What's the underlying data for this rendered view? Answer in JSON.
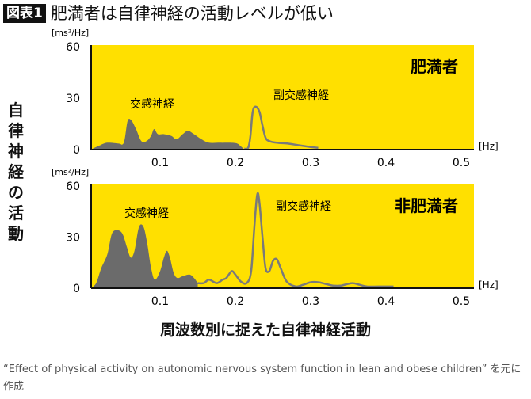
{
  "header": {
    "badge": "図表1",
    "title": "肥満者は自律神経の活動レベルが低い"
  },
  "ylabel_vertical": "自律神経の活動",
  "xlabel": "周波数別に捉えた自律神経活動",
  "source": "“Effect of physical activity on autonomic nervous system function in lean and obese children” を元に作成",
  "colors": {
    "background": "#FFE000",
    "fill": "#6B6B6B",
    "line": "#7A7A7A"
  },
  "chart_data": [
    {
      "type": "area",
      "title": "肥満者",
      "ylabel": "[ms²/Hz]",
      "xlabel": "[Hz]",
      "ylim": [
        0,
        60
      ],
      "xlim": [
        0,
        0.5
      ],
      "yticks": [
        "60",
        "30",
        "0"
      ],
      "xticks": [
        "0.1",
        "0.2",
        "0.3",
        "0.4",
        "0.5"
      ],
      "series": [
        {
          "name": "交感神経",
          "style": "filled",
          "x": [
            0.008,
            0.02,
            0.03,
            0.045,
            0.05,
            0.053,
            0.057,
            0.062,
            0.068,
            0.075,
            0.082,
            0.088,
            0.092,
            0.097,
            0.105,
            0.115,
            0.122,
            0.13,
            0.137,
            0.145,
            0.155,
            0.165,
            0.18,
            0.2,
            0.207,
            0.212
          ],
          "y": [
            0,
            2.5,
            4,
            3.5,
            3,
            6,
            17,
            17,
            12,
            5,
            5,
            8,
            12,
            9,
            9,
            8,
            6,
            9,
            11,
            9,
            6,
            4,
            4,
            3.8,
            2,
            0
          ]
        },
        {
          "name": "副交感神経",
          "style": "line",
          "x": [
            0.212,
            0.217,
            0.22,
            0.223,
            0.227,
            0.232,
            0.236,
            0.24,
            0.245,
            0.255,
            0.27,
            0.285,
            0.3,
            0.31
          ],
          "y": [
            0.5,
            1,
            8,
            22,
            25,
            22,
            14,
            7,
            5,
            4,
            3.5,
            2.5,
            1.5,
            1
          ]
        }
      ]
    },
    {
      "type": "area",
      "title": "非肥満者",
      "ylabel": "[ms²/Hz]",
      "xlabel": "[Hz]",
      "ylim": [
        0,
        60
      ],
      "xlim": [
        0,
        0.5
      ],
      "yticks": [
        "60",
        "30",
        "0"
      ],
      "xticks": [
        "0.1",
        "0.2",
        "0.3",
        "0.4",
        "0.5"
      ],
      "series": [
        {
          "name": "交感神経",
          "style": "filled",
          "x": [
            0.008,
            0.015,
            0.022,
            0.03,
            0.036,
            0.043,
            0.05,
            0.056,
            0.061,
            0.066,
            0.072,
            0.078,
            0.083,
            0.088,
            0.093,
            0.1,
            0.105,
            0.109,
            0.113,
            0.118,
            0.123,
            0.13,
            0.139,
            0.145,
            0.15
          ],
          "y": [
            0,
            3,
            12,
            20,
            32,
            34,
            32,
            24,
            18,
            22,
            36,
            36,
            26,
            12,
            5,
            10,
            18,
            22,
            18,
            9,
            6,
            7,
            8,
            6,
            3
          ]
        },
        {
          "name": "副交感神経",
          "style": "line",
          "x": [
            0.15,
            0.158,
            0.165,
            0.175,
            0.183,
            0.188,
            0.195,
            0.2,
            0.207,
            0.215,
            0.221,
            0.225,
            0.229,
            0.232,
            0.236,
            0.24,
            0.245,
            0.25,
            0.255,
            0.26,
            0.268,
            0.28,
            0.29,
            0.3,
            0.31,
            0.32,
            0.33,
            0.34,
            0.355,
            0.365,
            0.375,
            0.39,
            0.41
          ],
          "y": [
            3,
            3,
            5,
            3,
            5,
            6,
            10,
            8,
            4,
            3,
            10,
            35,
            55,
            50,
            30,
            12,
            10,
            16,
            17,
            12,
            4,
            1,
            2,
            3.5,
            3.5,
            2.5,
            1.5,
            1.5,
            3,
            2,
            1,
            1,
            1
          ]
        }
      ]
    }
  ]
}
